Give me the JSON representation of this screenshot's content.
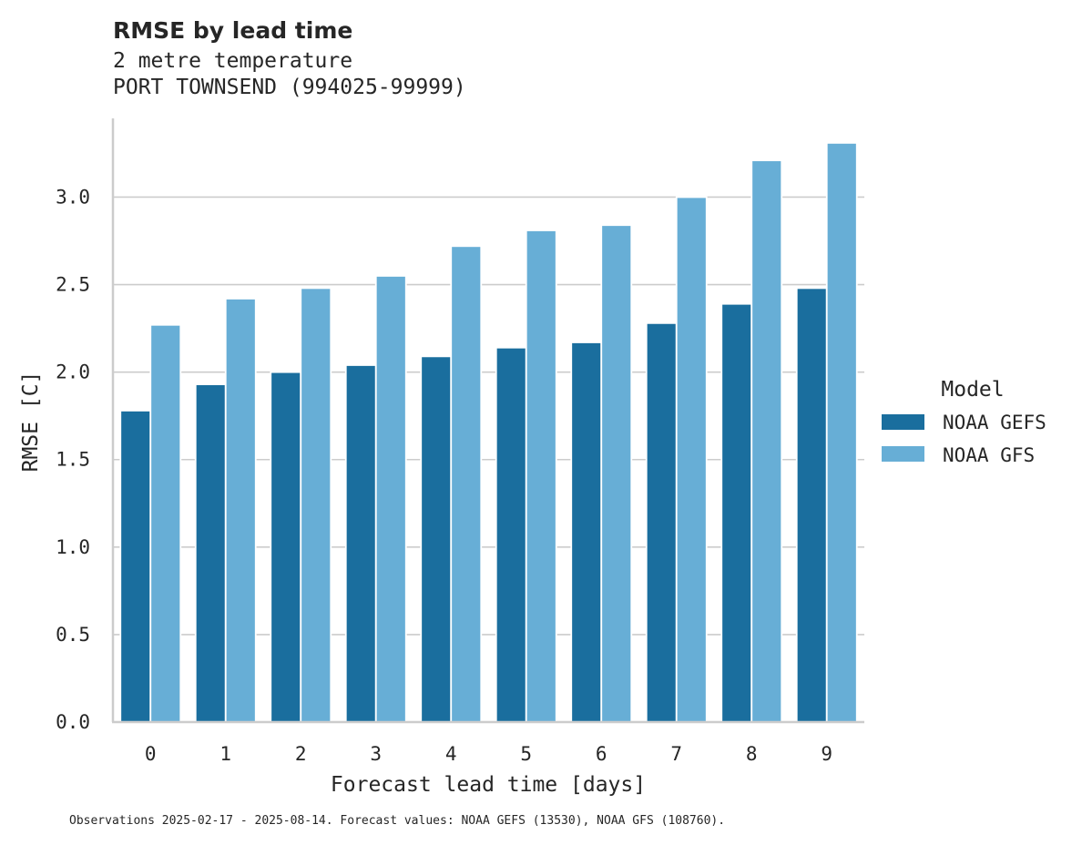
{
  "chart_data": {
    "type": "bar",
    "title": "RMSE by lead time",
    "subtitle_lines": [
      "2 metre temperature",
      "PORT TOWNSEND (994025-99999)"
    ],
    "xlabel": "Forecast lead time [days]",
    "ylabel": "RMSE [C]",
    "categories": [
      "0",
      "1",
      "2",
      "3",
      "4",
      "5",
      "6",
      "7",
      "8",
      "9"
    ],
    "ylim": [
      0,
      3.45
    ],
    "yticks": [
      "0.0",
      "0.5",
      "1.0",
      "1.5",
      "2.0",
      "2.5",
      "3.0"
    ],
    "grid": "horizontal",
    "legend": {
      "title": "Model",
      "placement": "right",
      "items": [
        "NOAA GEFS",
        "NOAA GFS"
      ]
    },
    "series": [
      {
        "name": "NOAA GEFS",
        "color": "#1a6e9e",
        "values": [
          1.78,
          1.93,
          2.0,
          2.04,
          2.09,
          2.14,
          2.17,
          2.28,
          2.39,
          2.48
        ]
      },
      {
        "name": "NOAA GFS",
        "color": "#67aed6",
        "values": [
          2.27,
          2.42,
          2.48,
          2.55,
          2.72,
          2.81,
          2.84,
          3.0,
          3.21,
          3.31
        ]
      }
    ],
    "footnote": "Observations 2025-02-17 - 2025-08-14. Forecast values: NOAA GEFS (13530), NOAA GFS (108760)."
  }
}
